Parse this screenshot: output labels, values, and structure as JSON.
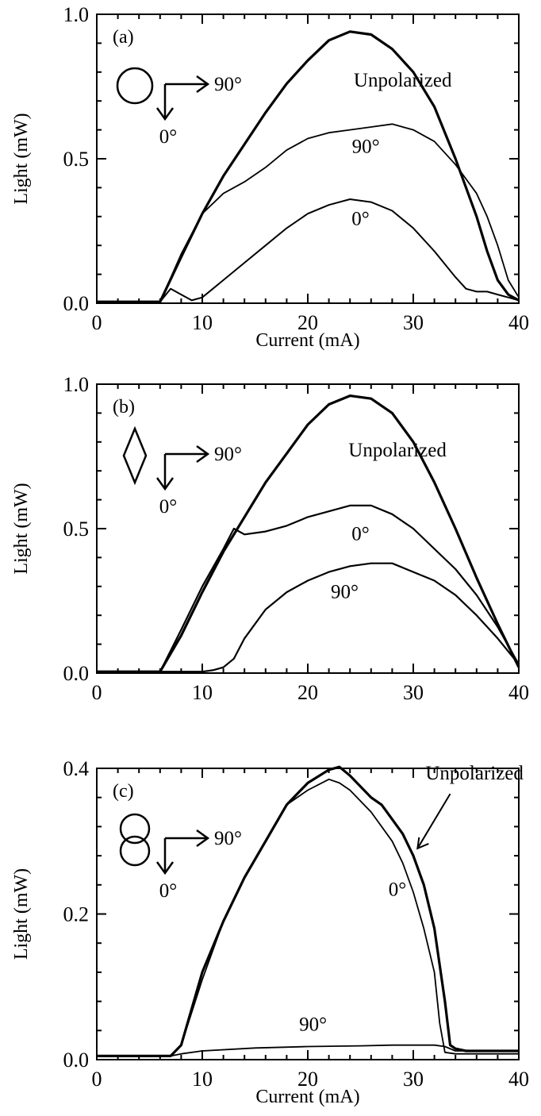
{
  "figure": {
    "ink_color": "#000000",
    "background": "#ffffff"
  },
  "chart_data": [
    {
      "type": "line",
      "panel_label": "(a)",
      "xlabel": "Current (mA)",
      "ylabel": "Light (mW)",
      "xlim": [
        0,
        40
      ],
      "ylim": [
        0,
        1.0
      ],
      "xticks": [
        0,
        10,
        20,
        30,
        40
      ],
      "yticks": [
        0,
        0.5,
        1.0
      ],
      "xtick_labels": [
        "0",
        "10",
        "20",
        "30",
        "40"
      ],
      "ytick_labels": [
        "0.0",
        "0.5",
        "1.0"
      ],
      "grid": false,
      "inset_icon": "single-circle-aperture",
      "inset_labels": {
        "horizontal": "90°",
        "vertical": "0°"
      },
      "series": [
        {
          "label": "Unpolarized",
          "stroke": 3.2,
          "x": [
            0,
            6,
            8,
            10,
            12,
            14,
            16,
            18,
            20,
            22,
            24,
            26,
            28,
            30,
            32,
            34,
            36,
            37,
            38,
            39,
            40
          ],
          "y": [
            0.005,
            0.005,
            0.16,
            0.31,
            0.44,
            0.55,
            0.66,
            0.76,
            0.84,
            0.91,
            0.94,
            0.93,
            0.88,
            0.8,
            0.68,
            0.5,
            0.3,
            0.18,
            0.08,
            0.03,
            0.01
          ]
        },
        {
          "label": "90°",
          "stroke": 1.8,
          "x": [
            0,
            6,
            8,
            10,
            12,
            14,
            16,
            18,
            20,
            22,
            24,
            26,
            28,
            30,
            32,
            34,
            35,
            36,
            37,
            38,
            39,
            40
          ],
          "y": [
            0.005,
            0.005,
            0.17,
            0.31,
            0.38,
            0.42,
            0.47,
            0.53,
            0.57,
            0.59,
            0.6,
            0.61,
            0.62,
            0.6,
            0.56,
            0.48,
            0.43,
            0.38,
            0.3,
            0.2,
            0.08,
            0.02
          ]
        },
        {
          "label": "0°",
          "stroke": 2.0,
          "x": [
            0,
            6,
            7,
            8,
            9,
            10,
            11,
            12,
            14,
            16,
            18,
            20,
            22,
            24,
            26,
            28,
            30,
            32,
            34,
            35,
            36,
            37,
            38,
            39,
            40
          ],
          "y": [
            0.005,
            0.005,
            0.05,
            0.03,
            0.01,
            0.02,
            0.05,
            0.08,
            0.14,
            0.2,
            0.26,
            0.31,
            0.34,
            0.36,
            0.35,
            0.32,
            0.26,
            0.18,
            0.09,
            0.05,
            0.04,
            0.04,
            0.03,
            0.02,
            0.01
          ]
        }
      ],
      "annotations": [
        {
          "text": "Unpolarized",
          "x": 29,
          "y": 0.75
        },
        {
          "text": "90°",
          "x": 25.5,
          "y": 0.52
        },
        {
          "text": "0°",
          "x": 25,
          "y": 0.27
        }
      ]
    },
    {
      "type": "line",
      "panel_label": "(b)",
      "xlabel": "",
      "ylabel": "Light (mW)",
      "xlim": [
        0,
        40
      ],
      "ylim": [
        0,
        1.0
      ],
      "xticks": [
        0,
        10,
        20,
        30,
        40
      ],
      "yticks": [
        0,
        0.5,
        1.0
      ],
      "xtick_labels": [
        "0",
        "10",
        "20",
        "30",
        "40"
      ],
      "ytick_labels": [
        "0.0",
        "0.5",
        "1.0"
      ],
      "grid": false,
      "inset_icon": "diamond-aperture",
      "inset_labels": {
        "horizontal": "90°",
        "vertical": "0°"
      },
      "series": [
        {
          "label": "Unpolarized",
          "stroke": 3.2,
          "x": [
            0,
            6,
            8,
            10,
            12,
            14,
            16,
            18,
            20,
            22,
            24,
            26,
            28,
            30,
            32,
            34,
            36,
            38,
            40
          ],
          "y": [
            0.005,
            0.005,
            0.13,
            0.28,
            0.42,
            0.54,
            0.66,
            0.76,
            0.86,
            0.93,
            0.96,
            0.95,
            0.9,
            0.8,
            0.66,
            0.5,
            0.33,
            0.17,
            0.02
          ]
        },
        {
          "label": "0°",
          "stroke": 2.2,
          "x": [
            0,
            6,
            8,
            10,
            12,
            13,
            14,
            16,
            18,
            20,
            22,
            24,
            26,
            28,
            30,
            32,
            34,
            36,
            38,
            40
          ],
          "y": [
            0.005,
            0.005,
            0.15,
            0.3,
            0.43,
            0.5,
            0.48,
            0.49,
            0.51,
            0.54,
            0.56,
            0.58,
            0.58,
            0.55,
            0.5,
            0.43,
            0.36,
            0.27,
            0.16,
            0.03
          ]
        },
        {
          "label": "90°",
          "stroke": 2.2,
          "x": [
            0,
            10,
            11,
            12,
            13,
            14,
            16,
            18,
            20,
            22,
            24,
            26,
            28,
            30,
            32,
            34,
            36,
            38,
            40
          ],
          "y": [
            0.005,
            0.005,
            0.01,
            0.02,
            0.05,
            0.12,
            0.22,
            0.28,
            0.32,
            0.35,
            0.37,
            0.38,
            0.38,
            0.35,
            0.32,
            0.27,
            0.2,
            0.12,
            0.03
          ]
        }
      ],
      "annotations": [
        {
          "text": "Unpolarized",
          "x": 28.5,
          "y": 0.75
        },
        {
          "text": "0°",
          "x": 25,
          "y": 0.46
        },
        {
          "text": "90°",
          "x": 23.5,
          "y": 0.26
        }
      ]
    },
    {
      "type": "line",
      "panel_label": "(c)",
      "xlabel": "Current (mA)",
      "ylabel": "Light (mW)",
      "xlim": [
        0,
        40
      ],
      "ylim": [
        0,
        0.4
      ],
      "xticks": [
        0,
        10,
        20,
        30,
        40
      ],
      "yticks": [
        0,
        0.2,
        0.4
      ],
      "xtick_labels": [
        "0",
        "10",
        "20",
        "30",
        "40"
      ],
      "ytick_labels": [
        "0.0",
        "0.2",
        "0.4"
      ],
      "grid": false,
      "inset_icon": "double-circle-aperture",
      "inset_labels": {
        "horizontal": "90°",
        "vertical": "0°"
      },
      "series": [
        {
          "label": "Unpolarized",
          "stroke": 3.2,
          "x": [
            0,
            7,
            8,
            10,
            12,
            14,
            16,
            18,
            20,
            22,
            23,
            24,
            26,
            27,
            28,
            29,
            30,
            31,
            32,
            33,
            33.5,
            34,
            35,
            40
          ],
          "y": [
            0.005,
            0.005,
            0.02,
            0.12,
            0.19,
            0.25,
            0.3,
            0.35,
            0.38,
            0.398,
            0.402,
            0.39,
            0.36,
            0.35,
            0.33,
            0.31,
            0.28,
            0.24,
            0.18,
            0.08,
            0.02,
            0.015,
            0.012,
            0.012
          ]
        },
        {
          "label": "0°",
          "stroke": 1.8,
          "x": [
            0,
            7,
            8,
            10,
            12,
            14,
            16,
            18,
            20,
            22,
            23,
            24,
            26,
            28,
            29,
            30,
            31,
            32,
            32.5,
            33,
            34,
            40
          ],
          "y": [
            0.005,
            0.005,
            0.02,
            0.11,
            0.19,
            0.25,
            0.3,
            0.35,
            0.37,
            0.385,
            0.38,
            0.37,
            0.34,
            0.3,
            0.27,
            0.23,
            0.18,
            0.12,
            0.05,
            0.01,
            0.008,
            0.008
          ]
        },
        {
          "label": "90°",
          "stroke": 1.8,
          "x": [
            0,
            7,
            8,
            10,
            15,
            20,
            25,
            28,
            30,
            32,
            33,
            34,
            40
          ],
          "y": [
            0.005,
            0.005,
            0.008,
            0.012,
            0.016,
            0.018,
            0.019,
            0.02,
            0.02,
            0.02,
            0.018,
            0.012,
            0.012
          ]
        }
      ],
      "annotations": [
        {
          "text": "Unpolarized",
          "x": 35.8,
          "y": 0.385
        },
        {
          "text": "0°",
          "x": 28.5,
          "y": 0.225
        },
        {
          "text": "90°",
          "x": 20.5,
          "y": 0.04
        }
      ]
    }
  ]
}
